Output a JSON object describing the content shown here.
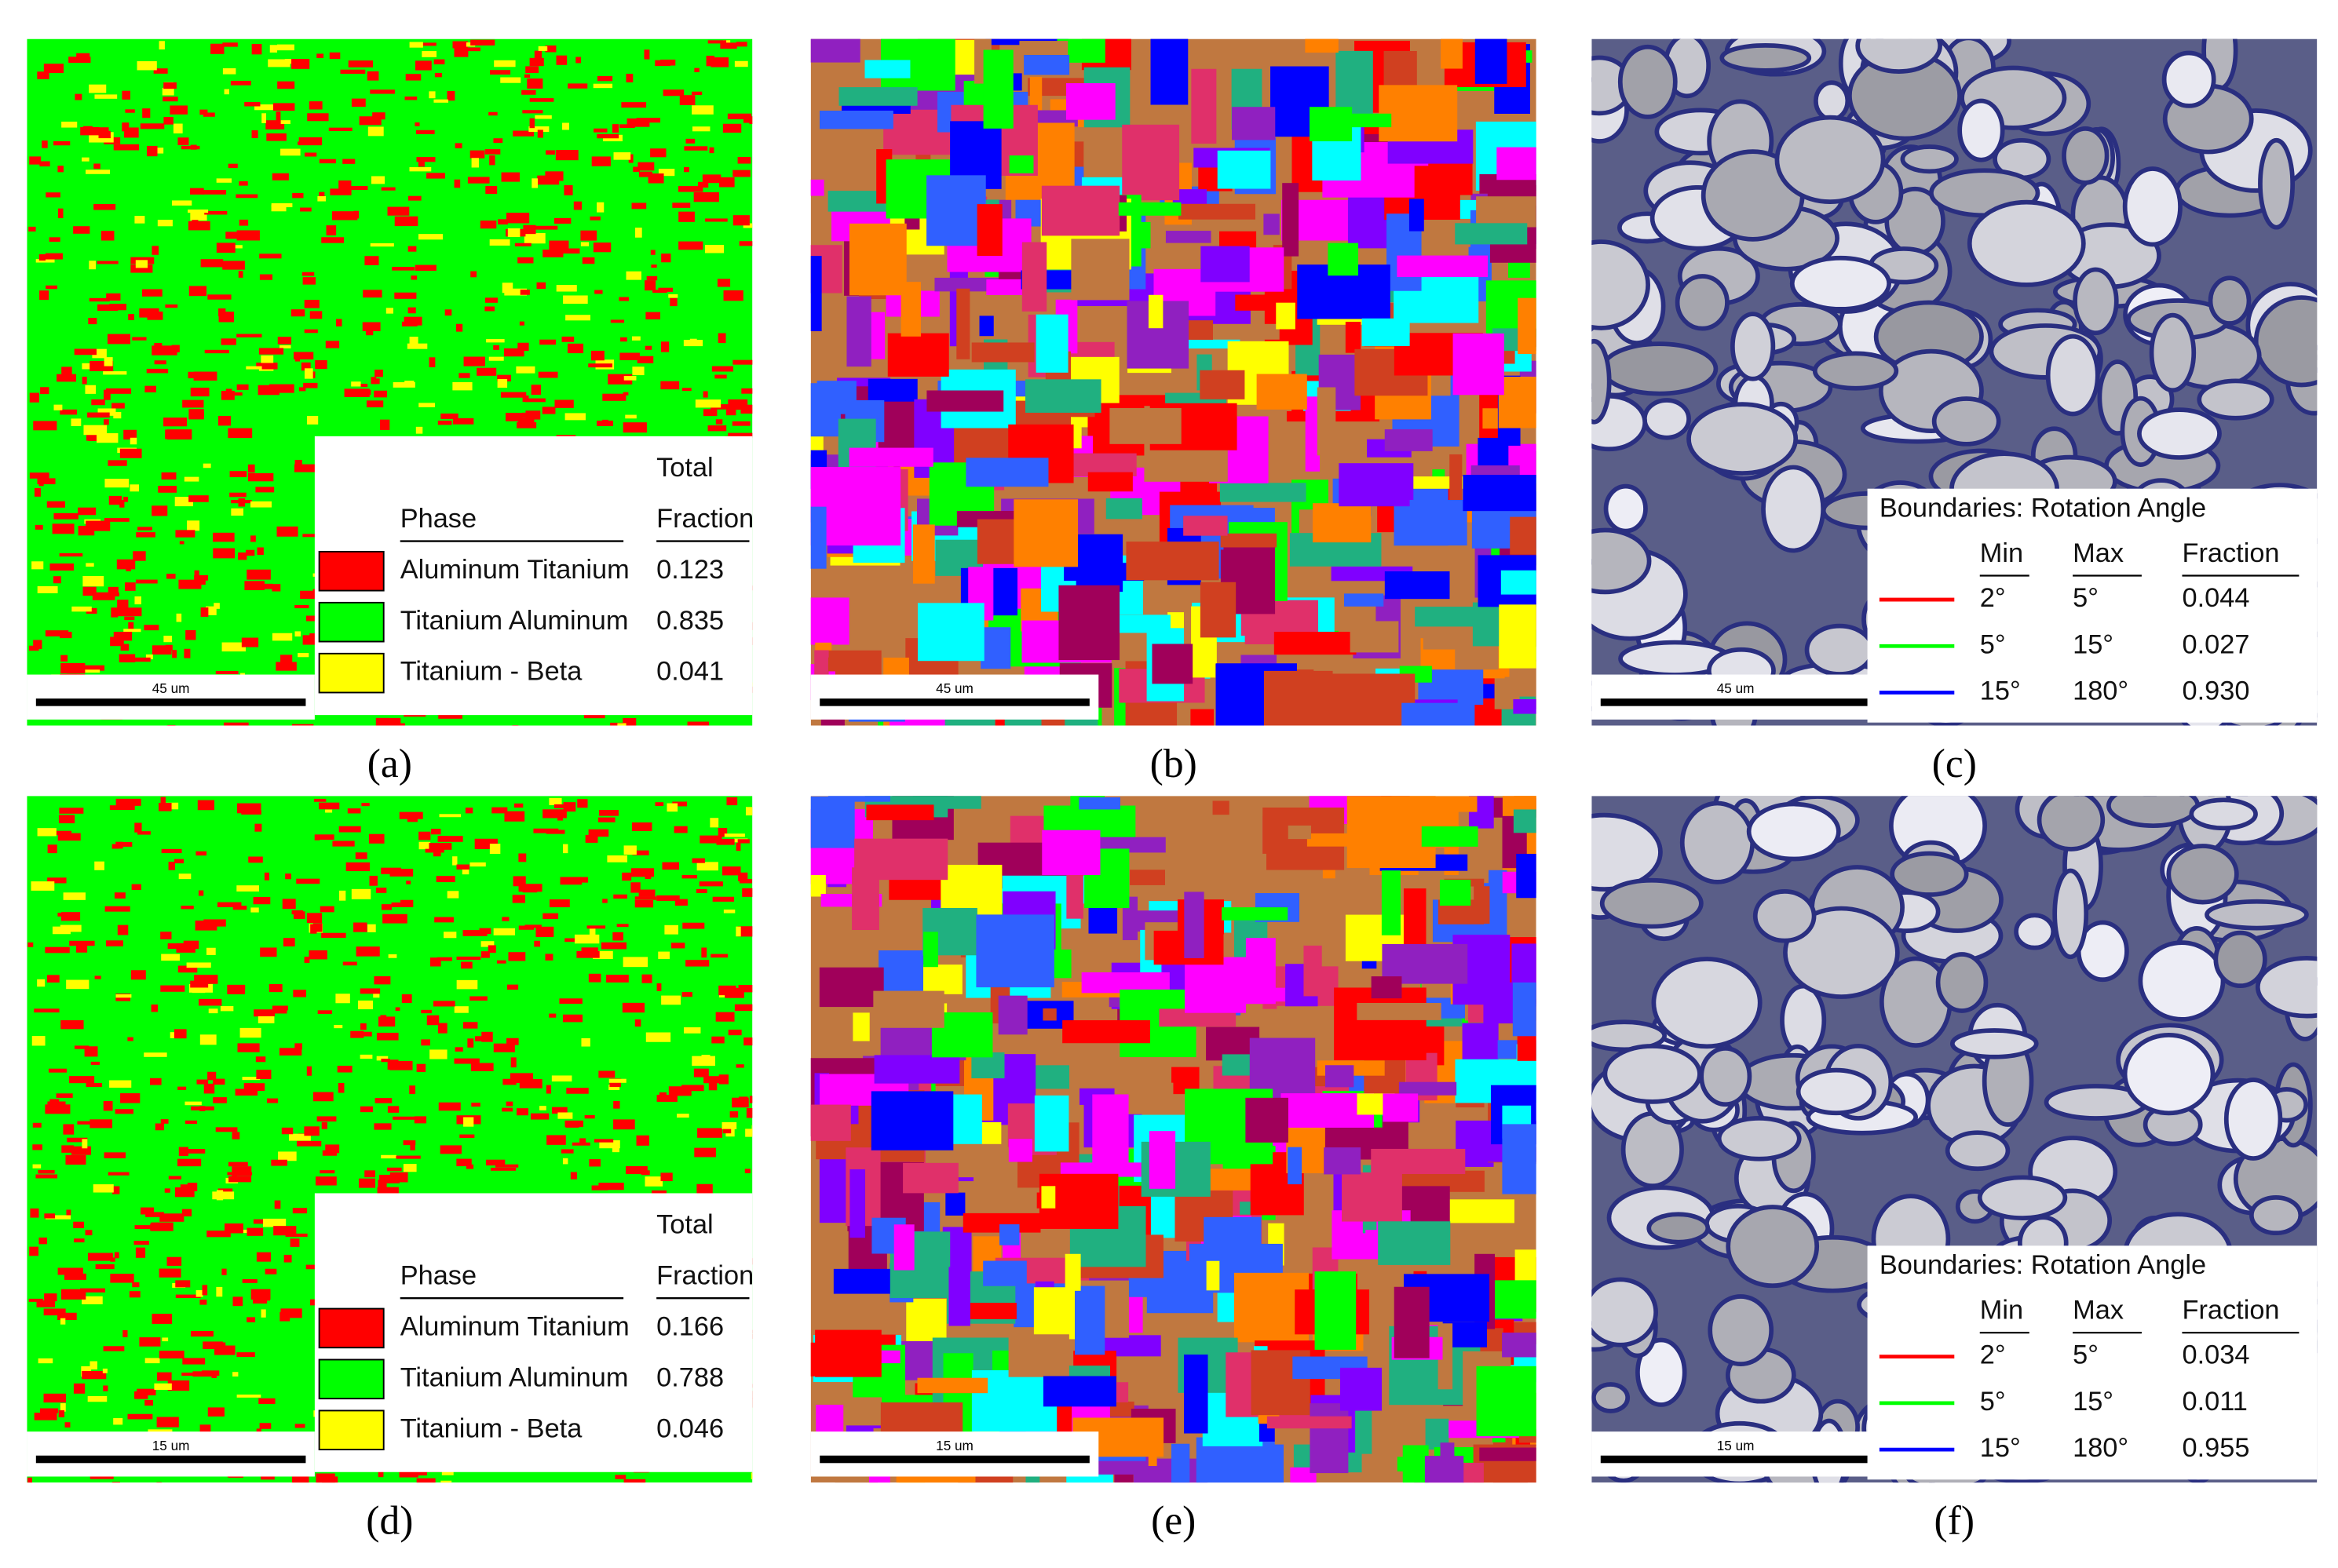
{
  "panels": [
    {
      "label": "(a)",
      "scale_bar": "45 um",
      "phase_legend": {
        "total_header": "Total",
        "phase_header": "Phase",
        "fraction_header": "Fraction",
        "rows": [
          {
            "name": "Aluminum Titanium",
            "color": "#ff0000",
            "fraction": "0.123"
          },
          {
            "name": "Titanium Aluminum",
            "color": "#00ff00",
            "fraction": "0.835"
          },
          {
            "name": "Titanium - Beta",
            "color": "#ffff00",
            "fraction": "0.041"
          }
        ]
      }
    },
    {
      "label": "(b)",
      "scale_bar": "45 um"
    },
    {
      "label": "(c)",
      "scale_bar": "45 um",
      "boundary_legend": {
        "title": "Boundaries: Rotation Angle",
        "min_header": "Min",
        "max_header": "Max",
        "fraction_header": "Fraction",
        "rows": [
          {
            "color": "#ff0000",
            "min": "2°",
            "max": "5°",
            "fraction": "0.044"
          },
          {
            "color": "#00ff00",
            "min": "5°",
            "max": "15°",
            "fraction": "0.027"
          },
          {
            "color": "#0000ff",
            "min": "15°",
            "max": "180°",
            "fraction": "0.930"
          }
        ]
      }
    },
    {
      "label": "(d)",
      "scale_bar": "15 um",
      "phase_legend": {
        "total_header": "Total",
        "phase_header": "Phase",
        "fraction_header": "Fraction",
        "rows": [
          {
            "name": "Aluminum Titanium",
            "color": "#ff0000",
            "fraction": "0.166"
          },
          {
            "name": "Titanium Aluminum",
            "color": "#00ff00",
            "fraction": "0.788"
          },
          {
            "name": "Titanium - Beta",
            "color": "#ffff00",
            "fraction": "0.046"
          }
        ]
      }
    },
    {
      "label": "(e)",
      "scale_bar": "15 um"
    },
    {
      "label": "(f)",
      "scale_bar": "15 um",
      "boundary_legend": {
        "title": "Boundaries: Rotation Angle",
        "min_header": "Min",
        "max_header": "Max",
        "fraction_header": "Fraction",
        "rows": [
          {
            "color": "#ff0000",
            "min": "2°",
            "max": "5°",
            "fraction": "0.034"
          },
          {
            "color": "#00ff00",
            "min": "5°",
            "max": "15°",
            "fraction": "0.011"
          },
          {
            "color": "#0000ff",
            "min": "15°",
            "max": "180°",
            "fraction": "0.955"
          }
        ]
      }
    }
  ]
}
